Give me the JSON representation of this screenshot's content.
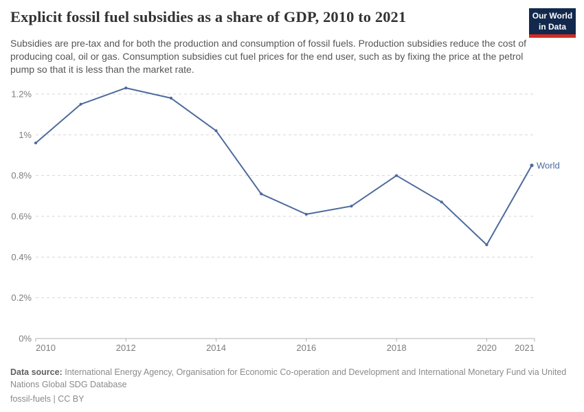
{
  "header": {
    "title": "Explicit fossil fuel subsidies as a share of GDP, 2010 to 2021",
    "subtitle": "Subsidies are pre-tax and for both the production and consumption of fossil fuels. Production subsidies reduce the cost of producing coal, oil or gas. Consumption subsidies cut fuel prices for the end user, such as by fixing the price at the petrol pump so that it is less than the market rate.",
    "logo": {
      "line1": "Our World",
      "line2": "in Data",
      "background_color": "#12294d",
      "stripe_color": "#d42b21"
    }
  },
  "chart_data": {
    "type": "line",
    "title": "Explicit fossil fuel subsidies as a share of GDP, 2010 to 2021",
    "x": [
      2010,
      2011,
      2012,
      2013,
      2014,
      2015,
      2016,
      2017,
      2018,
      2019,
      2020,
      2021
    ],
    "series": [
      {
        "name": "World",
        "color": "#4c6a9c",
        "values": [
          0.96,
          1.15,
          1.23,
          1.18,
          1.02,
          0.71,
          0.61,
          0.65,
          0.8,
          0.67,
          0.46,
          0.85
        ]
      }
    ],
    "unit": "%",
    "ylim": [
      0,
      1.2
    ],
    "y_ticks": [
      0,
      0.2,
      0.4,
      0.6,
      0.8,
      1.0,
      1.2
    ],
    "y_tick_labels": [
      "0%",
      "0.2%",
      "0.4%",
      "0.6%",
      "0.8%",
      "1%",
      "1.2%"
    ],
    "x_ticks": [
      2010,
      2012,
      2014,
      2016,
      2018,
      2020,
      2021
    ],
    "grid": "horizontal-dashed",
    "legend": "end-of-line-label",
    "grid_color": "#d6d6d6",
    "axis_color": "#b0b0b0"
  },
  "footer": {
    "source_label": "Data source:",
    "source_text": " International Energy Agency, Organisation for Economic Co-operation and Development and International Monetary Fund via United Nations Global SDG Database",
    "license": "fossil-fuels | CC BY"
  }
}
